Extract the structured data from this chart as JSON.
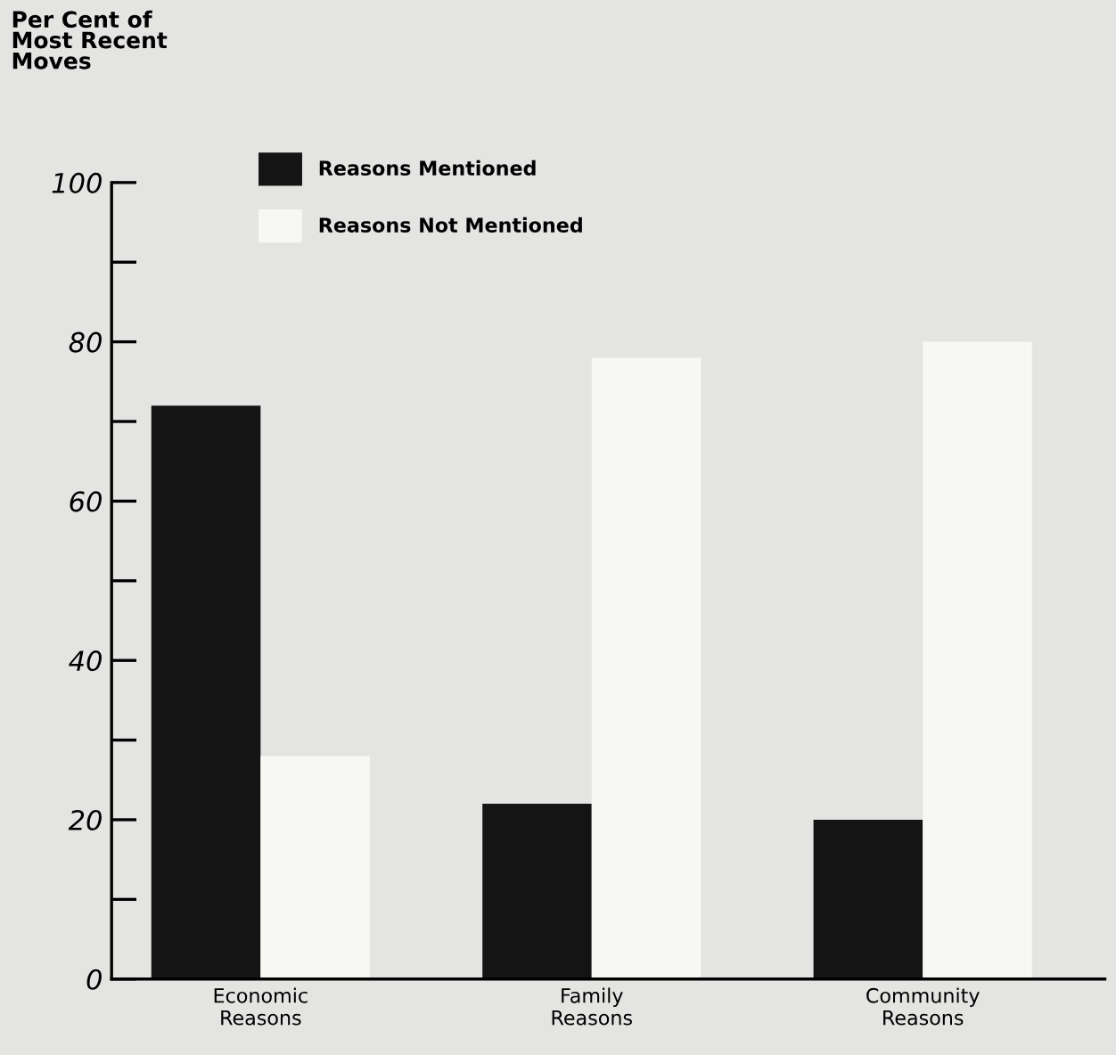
{
  "chart_data": {
    "type": "bar",
    "ylabel": "Per Cent of\nMost Recent\nMoves",
    "categories": [
      "Economic\nReasons",
      "Family\nReasons",
      "Community\nReasons"
    ],
    "series": [
      {
        "name": "Reasons Mentioned",
        "color": "#141414",
        "values": [
          72,
          22,
          20
        ]
      },
      {
        "name": "Reasons Not Mentioned",
        "color": "#f7f7f4",
        "values": [
          28,
          78,
          80
        ]
      }
    ],
    "ylim": [
      0,
      100
    ],
    "yticks": [
      0,
      {
        "value": 10,
        "label": null
      },
      20,
      {
        "value": 30,
        "label": null
      },
      40,
      {
        "value": 50,
        "label": null
      },
      60,
      {
        "value": 70,
        "label": null
      },
      80,
      {
        "value": 90,
        "label": null
      },
      100
    ],
    "grid": false,
    "legend": "top"
  }
}
